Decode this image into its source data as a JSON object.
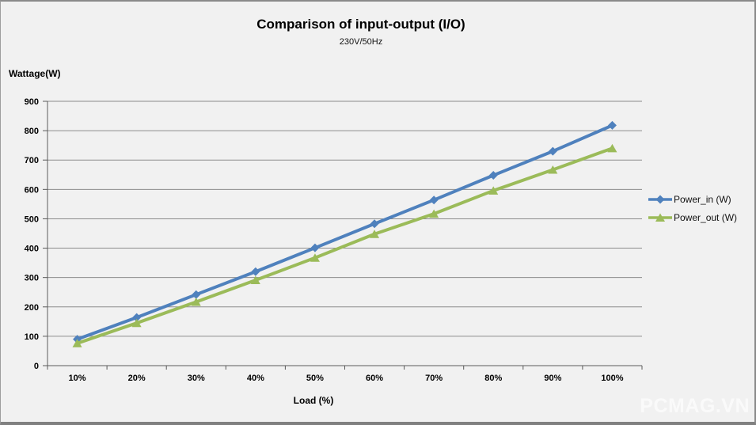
{
  "chart_data": {
    "type": "line",
    "title": "Comparison of input-output (I/O)",
    "subtitle": "230V/50Hz",
    "ylabel": "Wattage(W)",
    "xlabel": "Load (%)",
    "categories": [
      "10%",
      "20%",
      "30%",
      "40%",
      "50%",
      "60%",
      "70%",
      "80%",
      "90%",
      "100%"
    ],
    "series": [
      {
        "name": "Power_in (W)",
        "marker": "diamond",
        "color": "#4F81BD",
        "values": [
          90,
          164,
          242,
          320,
          401,
          483,
          564,
          648,
          730,
          818
        ]
      },
      {
        "name": "Power_out (W)",
        "marker": "triangle",
        "color": "#9BBB59",
        "values": [
          76,
          145,
          217,
          291,
          367,
          448,
          517,
          596,
          667,
          740
        ]
      }
    ],
    "ylim": [
      0,
      900
    ],
    "ytick_step": 100,
    "grid": true,
    "legend_position": "right"
  },
  "watermark": "PCMAG.VN",
  "colors": {
    "background": "#F1F1F1",
    "gridline": "#8C8C8C",
    "axis": "#5A5A5A",
    "text": "#000000",
    "watermark": "#FAFAFA"
  }
}
